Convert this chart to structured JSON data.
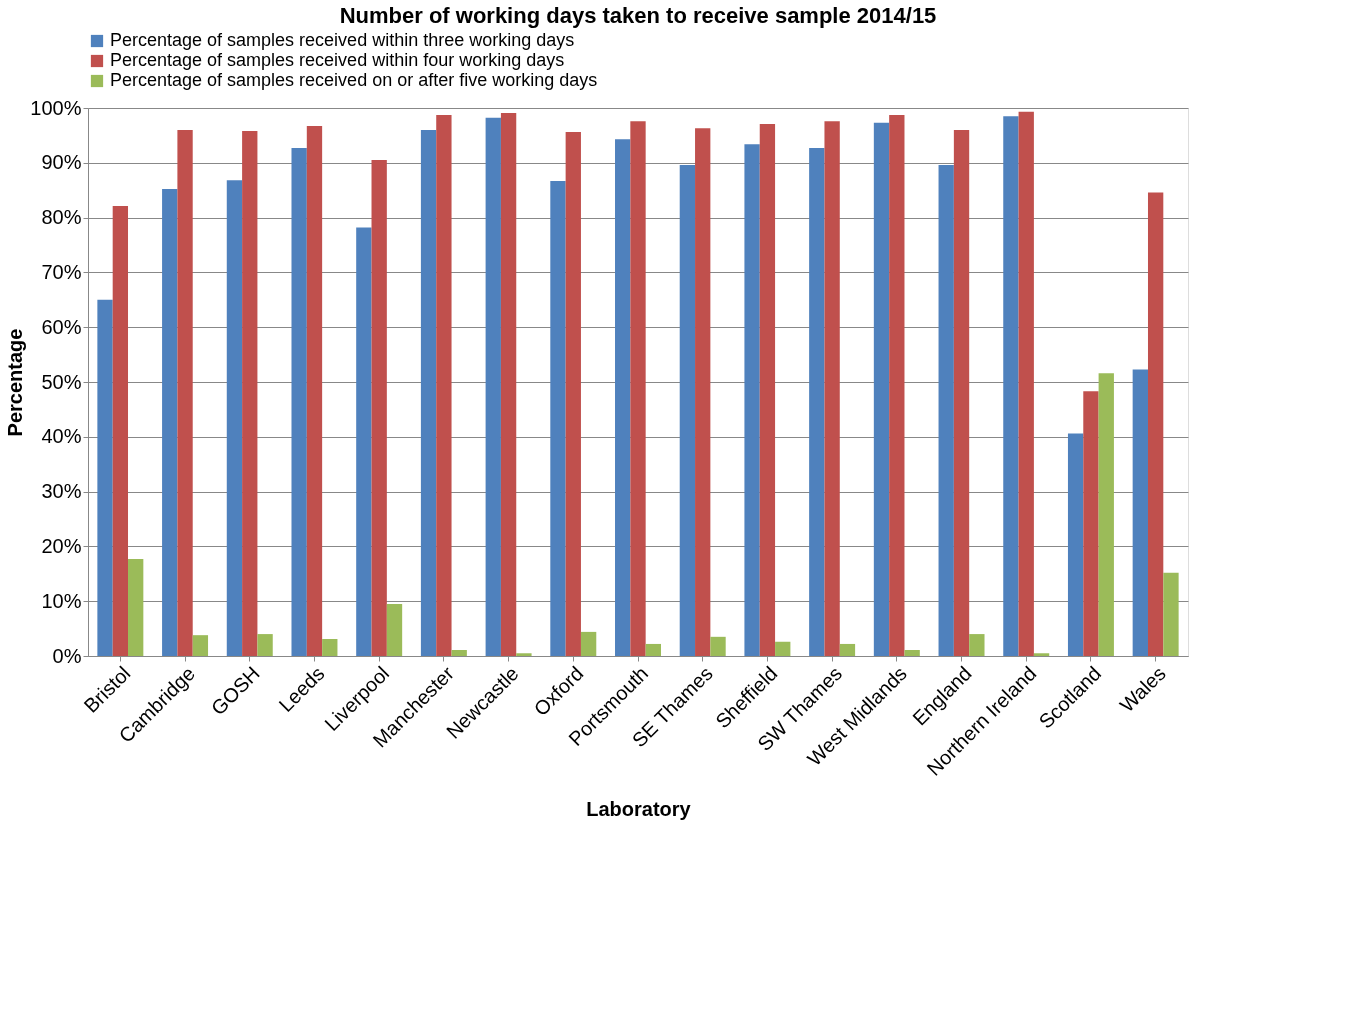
{
  "chart_data": {
    "type": "bar",
    "title": "Number of working days taken to receive sample 2014/15",
    "xlabel": "Laboratory",
    "ylabel": "Percentage",
    "categories": [
      "Bristol",
      "Cambridge",
      "GOSH",
      "Leeds",
      "Liverpool",
      "Manchester",
      "Newcastle",
      "Oxford",
      "Portsmouth",
      "SE Thames",
      "Sheffield",
      "SW Thames",
      "West Midlands",
      "England",
      "Northern Ireland",
      "Scotland",
      "Wales"
    ],
    "series": [
      {
        "name": "Percentage of samples received within three working days",
        "color": "#4f81bd",
        "values": [
          65,
          85.2,
          86.8,
          92.7,
          78.2,
          96,
          98.2,
          86.7,
          94.3,
          89.6,
          93.4,
          92.7,
          97.3,
          89.6,
          98.5,
          40.6,
          52.3
        ]
      },
      {
        "name": "Percentage of samples received within four working days",
        "color": "#c0504d",
        "values": [
          82.1,
          96,
          95.8,
          96.7,
          90.5,
          98.7,
          99.1,
          95.6,
          97.6,
          96.3,
          97.1,
          97.6,
          98.7,
          96,
          99.3,
          48.3,
          84.6
        ]
      },
      {
        "name": "Percentage of samples received on or after five working days",
        "color": "#9bbb59",
        "values": [
          17.7,
          3.8,
          4.0,
          3.1,
          9.5,
          1.1,
          0.5,
          4.4,
          2.2,
          3.5,
          2.6,
          2.2,
          1.1,
          4.0,
          0.5,
          51.6,
          15.2
        ]
      }
    ],
    "ylim": [
      0,
      100
    ],
    "yticks": [
      {
        "value": 0,
        "label": "0%"
      },
      {
        "value": 10,
        "label": "10%"
      },
      {
        "value": 20,
        "label": "20%"
      },
      {
        "value": 30,
        "label": "30%"
      },
      {
        "value": 40,
        "label": "40%"
      },
      {
        "value": 50,
        "label": "50%"
      },
      {
        "value": 60,
        "label": "60%"
      },
      {
        "value": 70,
        "label": "70%"
      },
      {
        "value": 80,
        "label": "80%"
      },
      {
        "value": 90,
        "label": "90%"
      },
      {
        "value": 100,
        "label": "100%"
      }
    ],
    "grid": "y",
    "legend": "top"
  }
}
